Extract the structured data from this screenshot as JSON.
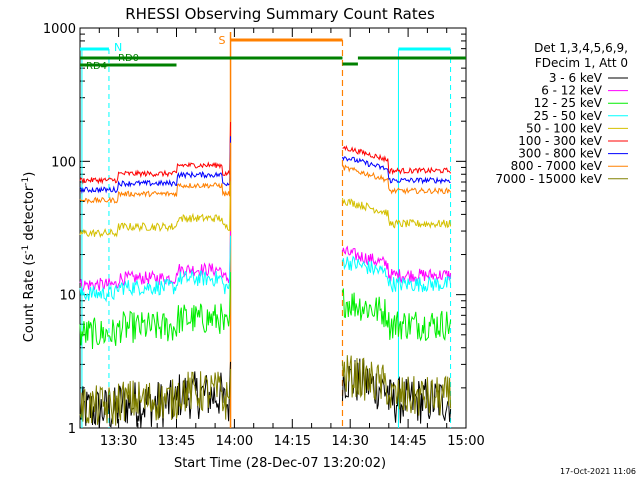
{
  "chart_data": {
    "type": "line",
    "title": "RHESSI Observing Summary Count Rates",
    "xlabel": "Start Time (28-Dec-07 13:20:02)",
    "ylabel_main": "Count Rate (s",
    "ylabel_sup1": "-1",
    "ylabel_mid": " detector",
    "ylabel_sup2": "-1",
    "ylabel_end": ")",
    "yscale": "log",
    "ylim": [
      1,
      1000
    ],
    "xlim_minutes": [
      0,
      100
    ],
    "x_ticks": [
      {
        "minute": 10,
        "label": "13:30"
      },
      {
        "minute": 25,
        "label": "13:45"
      },
      {
        "minute": 40,
        "label": "14:00"
      },
      {
        "minute": 55,
        "label": "14:15"
      },
      {
        "minute": 70,
        "label": "14:30"
      },
      {
        "minute": 85,
        "label": "14:45"
      },
      {
        "minute": 100,
        "label": "15:00"
      }
    ],
    "y_ticks": [
      {
        "value": 1,
        "label": "1"
      },
      {
        "value": 10,
        "label": "10"
      },
      {
        "value": 100,
        "label": "100"
      },
      {
        "value": 1000,
        "label": "1000"
      }
    ],
    "legend_header": [
      "Det 1,3,4,5,6,9,",
      "FDecim 1, Att 0"
    ],
    "series": [
      {
        "name": "3 - 6 keV",
        "color": "#000000",
        "level": 1.6,
        "noise": 0.18
      },
      {
        "name": "6 - 12 keV",
        "color": "#ff00ff",
        "level": 14,
        "noise": 0.05
      },
      {
        "name": "12 - 25 keV",
        "color": "#00ee00",
        "level": 6,
        "noise": 0.12
      },
      {
        "name": "25 - 50 keV",
        "color": "#00ffff",
        "level": 12,
        "noise": 0.06
      },
      {
        "name": "50 - 100 keV",
        "color": "#d4c000",
        "level": 34,
        "noise": 0.03
      },
      {
        "name": "100 - 300 keV",
        "color": "#ff0000",
        "level": 85,
        "noise": 0.02
      },
      {
        "name": "300 - 800 keV",
        "color": "#0000ff",
        "level": 72,
        "noise": 0.02
      },
      {
        "name": "800 - 7000 keV",
        "color": "#ff8000",
        "level": 60,
        "noise": 0.02
      },
      {
        "name": "7000 - 15000 keV",
        "color": "#808000",
        "level": 1.7,
        "noise": 0.16
      }
    ],
    "annotations": {
      "rd0": "RD0",
      "rd4": "RD4",
      "n_label": "N",
      "s_label": "S",
      "saa_minutes": [
        39,
        68
      ],
      "night_minutes": [
        [
          0,
          7.5
        ],
        [
          82.5,
          96
        ]
      ],
      "night_dashed_minutes": [
        7.5,
        96
      ],
      "saa_dashed_minute": 68,
      "data_gaps_minutes": [
        [
          39,
          68
        ]
      ]
    },
    "timestamp": "17-Oct-2021 11:06"
  },
  "colors": {
    "cyan": "#00ffff",
    "orange": "#ff8000",
    "green": "#008000"
  }
}
